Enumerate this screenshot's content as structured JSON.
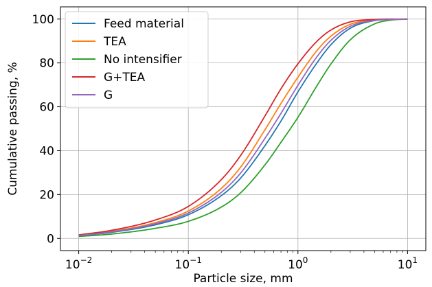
{
  "chart_data": {
    "type": "line",
    "xlabel": "Particle size, mm",
    "ylabel": "Cumulative passing, %",
    "x_scale": "log",
    "xlim": [
      0.01,
      10
    ],
    "ylim": [
      0,
      100
    ],
    "grid": true,
    "legend_position": "top-left",
    "xticks": [
      {
        "value": 0.01,
        "base": "10",
        "exp": "−2"
      },
      {
        "value": 0.1,
        "base": "10",
        "exp": "−1"
      },
      {
        "value": 1,
        "base": "10",
        "exp": "0"
      },
      {
        "value": 10,
        "base": "10",
        "exp": "1"
      }
    ],
    "yticks": [
      {
        "value": 0,
        "label": "0"
      },
      {
        "value": 20,
        "label": "20"
      },
      {
        "value": 40,
        "label": "40"
      },
      {
        "value": 60,
        "label": "60"
      },
      {
        "value": 80,
        "label": "80"
      },
      {
        "value": 100,
        "label": "100"
      }
    ],
    "x": [
      0.01,
      0.02,
      0.05,
      0.1,
      0.2,
      0.3,
      0.5,
      0.7,
      1,
      1.5,
      2,
      3,
      5,
      7,
      10
    ],
    "series": [
      {
        "name": "Feed material",
        "color": "#1f77b4",
        "values": [
          1.2,
          2.8,
          6.2,
          10.8,
          19.5,
          27.5,
          42.3,
          53.5,
          66.8,
          80.2,
          88.3,
          95.8,
          99.3,
          99.8,
          100
        ]
      },
      {
        "name": "TEA",
        "color": "#ff7f0e",
        "values": [
          1.4,
          3.2,
          7.2,
          12.5,
          22.8,
          32.5,
          49.5,
          61.5,
          73.5,
          85.8,
          92.2,
          97.6,
          99.6,
          99.9,
          100
        ]
      },
      {
        "name": "No intensifier",
        "color": "#2ca02c",
        "values": [
          0.9,
          2.0,
          4.6,
          7.8,
          14.3,
          20.8,
          33.5,
          43.8,
          55.2,
          69.8,
          79.5,
          90.5,
          97.8,
          99.5,
          100
        ]
      },
      {
        "name": "G+TEA",
        "color": "#d62728",
        "values": [
          1.6,
          3.7,
          8.4,
          14.6,
          26.8,
          37.8,
          55.8,
          68.2,
          79.6,
          90.0,
          95.0,
          98.7,
          99.8,
          100,
          100
        ]
      },
      {
        "name": "G",
        "color": "#9467bd",
        "values": [
          1.3,
          3.0,
          6.7,
          11.6,
          21.0,
          29.8,
          45.6,
          57.0,
          69.8,
          83.0,
          90.3,
          96.7,
          99.4,
          99.8,
          100
        ]
      }
    ]
  }
}
